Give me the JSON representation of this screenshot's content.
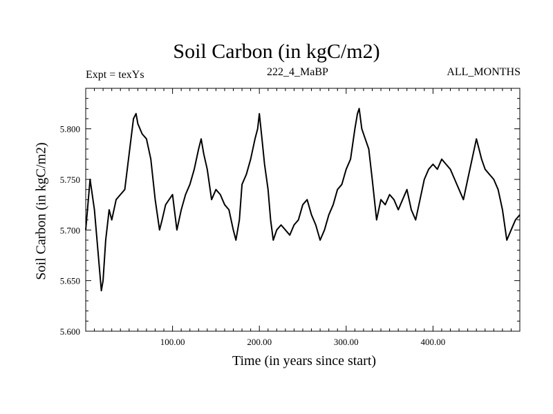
{
  "chart_data": {
    "type": "line",
    "title": "Soil Carbon (in kgC/m2)",
    "subtitle_left": "Expt = texYs",
    "subtitle_center": "222_4_MaBP",
    "subtitle_right": "ALL_MONTHS",
    "xlabel": "Time (in years since start)",
    "ylabel": "Soil Carbon (in kgC/m2)",
    "xlim": [
      0,
      500
    ],
    "ylim": [
      5.6,
      5.84
    ],
    "x_ticks": [
      100,
      200,
      300,
      400
    ],
    "x_tick_labels": [
      "100.00",
      "200.00",
      "300.00",
      "400.00"
    ],
    "y_ticks": [
      5.6,
      5.65,
      5.7,
      5.75,
      5.8
    ],
    "y_tick_labels": [
      "5.600",
      "5.650",
      "5.700",
      "5.750",
      "5.800"
    ],
    "grid": false,
    "line_color": "#000000",
    "series": [
      {
        "x": [
          0,
          5,
          10,
          14,
          18,
          20,
          23,
          27,
          30,
          35,
          40,
          45,
          50,
          55,
          58,
          60,
          65,
          70,
          75,
          80,
          85,
          88,
          92,
          96,
          100,
          105,
          110,
          115,
          120,
          125,
          130,
          133,
          136,
          140,
          145,
          150,
          155,
          160,
          165,
          170,
          173,
          177,
          180,
          185,
          190,
          195,
          198,
          200,
          203,
          206,
          210,
          213,
          216,
          220,
          225,
          230,
          235,
          240,
          245,
          250,
          255,
          260,
          265,
          270,
          275,
          280,
          285,
          290,
          295,
          300,
          305,
          310,
          313,
          315,
          318,
          322,
          326,
          330,
          335,
          340,
          345,
          350,
          355,
          360,
          365,
          370,
          375,
          380,
          385,
          390,
          395,
          400,
          405,
          410,
          415,
          420,
          425,
          430,
          435,
          440,
          445,
          450,
          453,
          456,
          460,
          465,
          470,
          475,
          480,
          485,
          490,
          495,
          500
        ],
        "y": [
          5.7,
          5.75,
          5.72,
          5.68,
          5.64,
          5.65,
          5.69,
          5.72,
          5.71,
          5.73,
          5.735,
          5.74,
          5.775,
          5.81,
          5.815,
          5.805,
          5.795,
          5.79,
          5.77,
          5.73,
          5.7,
          5.71,
          5.725,
          5.73,
          5.735,
          5.7,
          5.72,
          5.735,
          5.745,
          5.76,
          5.78,
          5.79,
          5.775,
          5.76,
          5.73,
          5.74,
          5.735,
          5.725,
          5.72,
          5.7,
          5.69,
          5.71,
          5.745,
          5.755,
          5.77,
          5.79,
          5.8,
          5.815,
          5.79,
          5.765,
          5.74,
          5.71,
          5.69,
          5.7,
          5.705,
          5.7,
          5.695,
          5.705,
          5.71,
          5.725,
          5.73,
          5.715,
          5.705,
          5.69,
          5.7,
          5.715,
          5.725,
          5.74,
          5.745,
          5.76,
          5.77,
          5.8,
          5.815,
          5.82,
          5.8,
          5.79,
          5.78,
          5.75,
          5.71,
          5.73,
          5.725,
          5.735,
          5.73,
          5.72,
          5.73,
          5.74,
          5.72,
          5.71,
          5.73,
          5.75,
          5.76,
          5.765,
          5.76,
          5.77,
          5.765,
          5.76,
          5.75,
          5.74,
          5.73,
          5.75,
          5.77,
          5.79,
          5.78,
          5.77,
          5.76,
          5.755,
          5.75,
          5.74,
          5.72,
          5.69,
          5.7,
          5.71,
          5.715
        ]
      }
    ]
  }
}
